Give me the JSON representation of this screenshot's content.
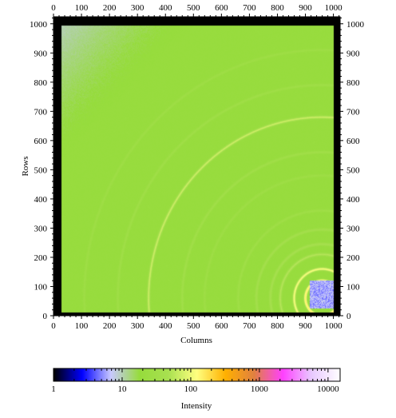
{
  "chart_data": {
    "type": "heatmap",
    "title": "",
    "xlabel": "Columns",
    "ylabel": "Rows",
    "xlim": [
      0,
      1024
    ],
    "ylim": [
      0,
      1024
    ],
    "x_ticks": [
      0,
      100,
      200,
      300,
      400,
      500,
      600,
      700,
      800,
      900,
      1000
    ],
    "y_ticks": [
      0,
      100,
      200,
      300,
      400,
      500,
      600,
      700,
      800,
      900,
      1000
    ],
    "colorbar": {
      "label": "Intensity",
      "scale": "log",
      "range": [
        1,
        15000
      ],
      "ticks": [
        1,
        10,
        100,
        1000,
        10000
      ],
      "tick_labels": [
        "1",
        "10",
        "100",
        "1000",
        "10000"
      ],
      "colors": [
        "#000000",
        "#0000ff",
        "#c8c8ff",
        "#96dc3c",
        "#a8e050",
        "#ffff80",
        "#ffb000",
        "#e08040",
        "#ff40ff",
        "#e8c8ff",
        "#ffffff"
      ]
    },
    "background_level": 20,
    "beam_center": {
      "column": 960,
      "row": 60
    },
    "rings": [
      {
        "radius": 60,
        "intensity": 150
      },
      {
        "radius": 100,
        "intensity": 110
      },
      {
        "radius": 150,
        "intensity": 55
      },
      {
        "radius": 185,
        "intensity": 42
      },
      {
        "radius": 235,
        "intensity": 38
      },
      {
        "radius": 300,
        "intensity": 30
      },
      {
        "radius": 420,
        "intensity": 28
      },
      {
        "radius": 500,
        "intensity": 32
      },
      {
        "radius": 620,
        "intensity": 70
      },
      {
        "radius": 730,
        "intensity": 30
      },
      {
        "radius": 850,
        "intensity": 28
      }
    ],
    "masked_regions": [
      {
        "label": "detector border",
        "value": 1
      },
      {
        "label": "beamstop",
        "columns": [
          915,
          1000
        ],
        "rows": [
          25,
          120
        ],
        "value": 6
      }
    ]
  }
}
